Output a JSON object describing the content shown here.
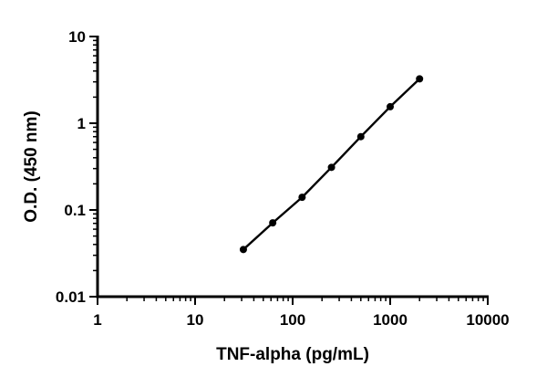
{
  "chart_data": {
    "type": "line",
    "title": "",
    "xlabel": "TNF-alpha (pg/mL)",
    "ylabel": "O.D. (450 nm)",
    "x_scale": "log",
    "y_scale": "log",
    "xlim": [
      1,
      10000
    ],
    "ylim": [
      0.01,
      10
    ],
    "x_ticks": [
      "1",
      "10",
      "100",
      "1000",
      "10000"
    ],
    "y_ticks": [
      "0.01",
      "0.1",
      "1",
      "10"
    ],
    "grid": false,
    "legend": "none",
    "series": [
      {
        "x": [
          31.25,
          62.5,
          125,
          250,
          500,
          1000,
          2000
        ],
        "y": [
          0.035,
          0.071,
          0.14,
          0.31,
          0.7,
          1.55,
          3.25
        ]
      }
    ],
    "colors": {
      "line": "#000000",
      "marker": "#000000",
      "axis": "#000000"
    }
  }
}
